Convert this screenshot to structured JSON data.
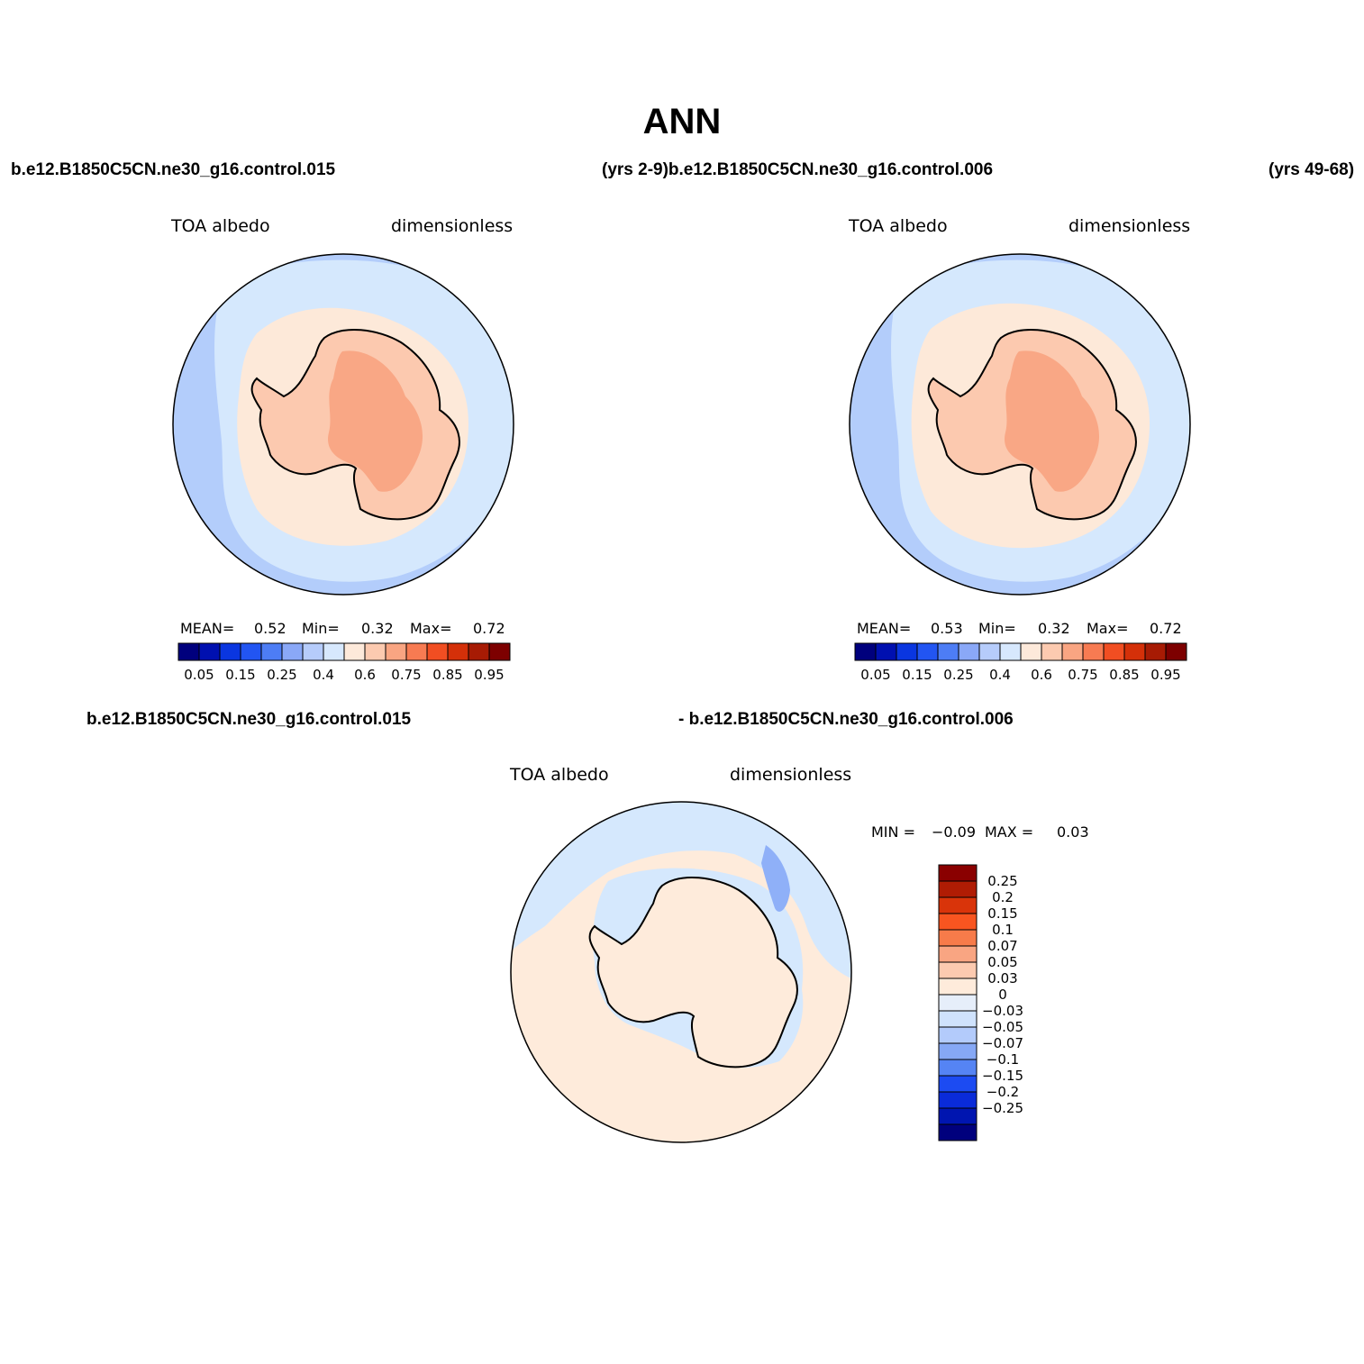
{
  "title": "ANN",
  "top_headers": {
    "left_case": "b.e12.B1850C5CN.ne30_g16.control.015",
    "mid_case": "(yrs 2-9)b.e12.B1850C5CN.ne30_g16.control.006",
    "right_years": "(yrs 49-68)"
  },
  "bottom_headers": {
    "left_case": "b.e12.B1850C5CN.ne30_g16.control.015",
    "right_case": "- b.e12.B1850C5CN.ne30_g16.control.006"
  },
  "panels": [
    {
      "variable": "TOA albedo",
      "units": "dimensionless",
      "stats": {
        "mean_label": "MEAN=",
        "mean": "0.52",
        "min_label": "Min=",
        "min": "0.32",
        "max_label": "Max=",
        "max": "0.72"
      }
    },
    {
      "variable": "TOA albedo",
      "units": "dimensionless",
      "stats": {
        "mean_label": "MEAN=",
        "mean": "0.53",
        "min_label": "Min=",
        "min": "0.32",
        "max_label": "Max=",
        "max": "0.72"
      }
    },
    {
      "variable": "TOA albedo",
      "units": "dimensionless",
      "stats": {
        "min_label": "MIN =",
        "min": "−0.09",
        "max_label": "MAX =",
        "max": "0.03"
      }
    }
  ],
  "colorbar_horizontal": {
    "colors": [
      "#00007d",
      "#0010b0",
      "#0a36e0",
      "#2255f2",
      "#4d7df5",
      "#8aa8f7",
      "#b6ccfb",
      "#d7e8fd",
      "#fde9da",
      "#fccab0",
      "#f9a582",
      "#f77b52",
      "#f14e22",
      "#d43009",
      "#a71b04",
      "#7d0000"
    ],
    "tick_labels": [
      "0.05",
      "0.15",
      "0.25",
      "0.4",
      "0.6",
      "0.75",
      "0.85",
      "0.95"
    ]
  },
  "colorbar_vertical": {
    "colors": [
      "#8a0000",
      "#b01c04",
      "#d9340a",
      "#f85520",
      "#f77b4a",
      "#f9a582",
      "#fccab0",
      "#feebdb",
      "#e6eefa",
      "#cfe2fc",
      "#b3cbfb",
      "#86a8f5",
      "#5584f4",
      "#1c4bf2",
      "#0a2bd9",
      "#0015b0",
      "#00007d"
    ],
    "tick_labels": [
      "0.25",
      "0.2",
      "0.15",
      "0.1",
      "0.07",
      "0.05",
      "0.03",
      "0",
      "−0.03",
      "−0.05",
      "−0.07",
      "−0.1",
      "−0.15",
      "−0.2",
      "−0.25"
    ]
  },
  "map_colors": {
    "ocean_outer": "#b3cdfb",
    "ocean_mid": "#d5e8fd",
    "sea_ice": "#fde9d9",
    "land": "#fcc9af",
    "plateau": "#f9a785",
    "diff_pos": "#feebdb",
    "diff_neg": "#d5e8fd",
    "diff_strong": "#8fb0f8"
  }
}
